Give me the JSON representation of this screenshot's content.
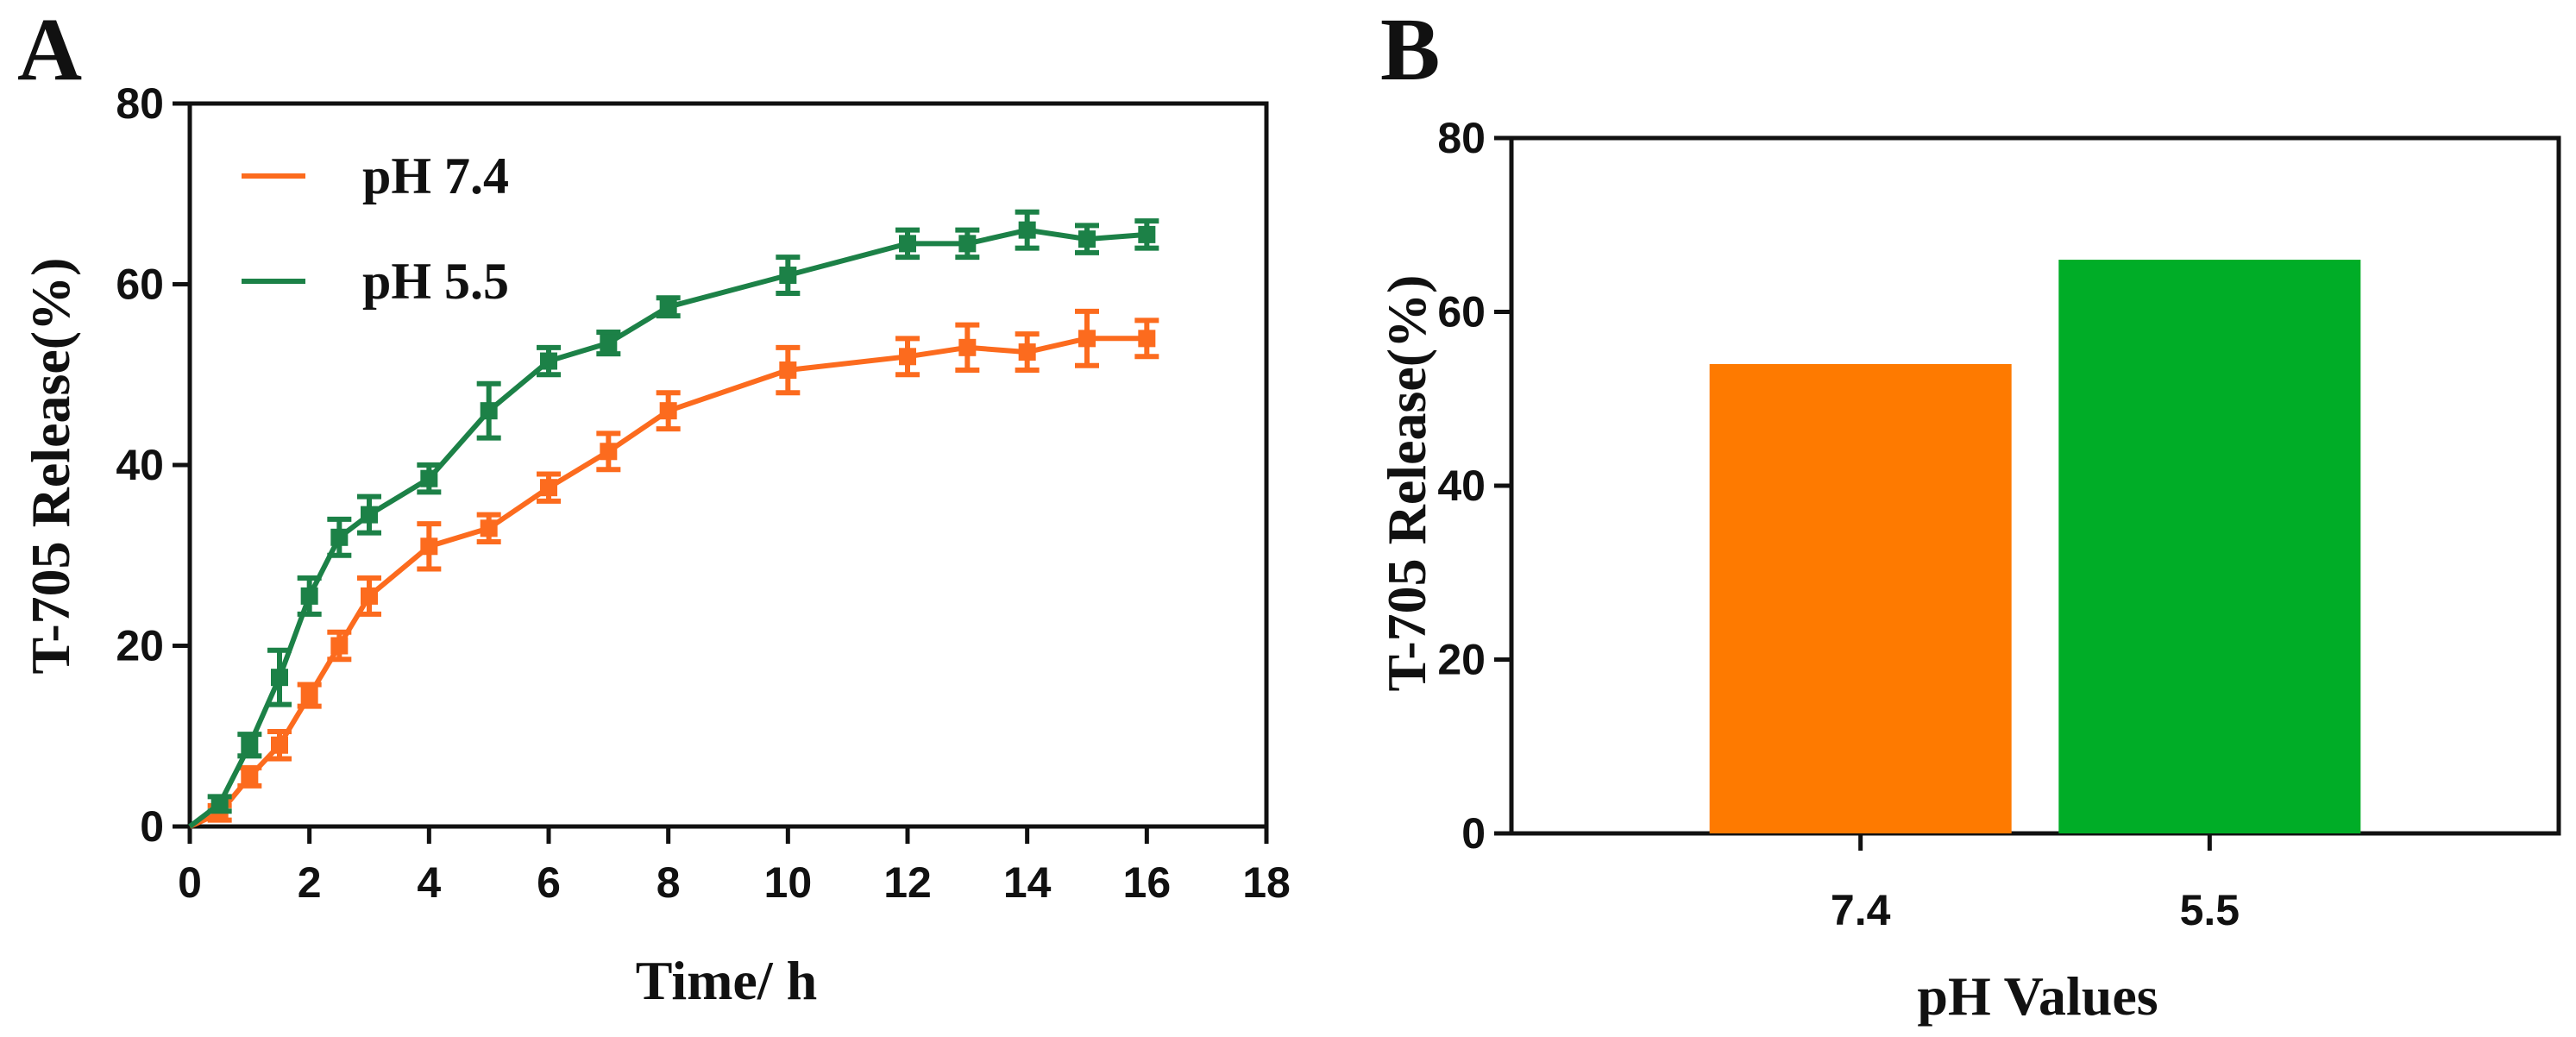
{
  "chart_data": [
    {
      "type": "line",
      "panel_label": "A",
      "xlabel": "Time/ h",
      "ylabel": "T-705 Release(%)",
      "xlim": [
        0,
        18
      ],
      "ylim": [
        0,
        80
      ],
      "xticks": [
        "0",
        "2",
        "4",
        "6",
        "8",
        "10",
        "12",
        "14",
        "16",
        "18"
      ],
      "yticks": [
        "0",
        "20",
        "40",
        "60",
        "80"
      ],
      "legend_position": "top-left",
      "series": [
        {
          "name": "pH 7.4",
          "color": "#fc6b1e",
          "x": [
            0,
            0.5,
            1,
            1.5,
            2,
            2.5,
            3,
            4,
            5,
            6,
            7,
            8,
            10,
            12,
            13,
            14,
            15,
            16
          ],
          "y": [
            0,
            1.5,
            5.5,
            9,
            14.5,
            20,
            25.5,
            31,
            33,
            37.5,
            41.5,
            46,
            50.5,
            52,
            53,
            52.5,
            54,
            54
          ],
          "err": [
            0,
            0.8,
            1.0,
            1.5,
            1.2,
            1.5,
            2.0,
            2.5,
            1.5,
            1.5,
            2.0,
            2.0,
            2.5,
            2.0,
            2.5,
            2.0,
            3.0,
            2.0
          ]
        },
        {
          "name": "pH 5.5",
          "color": "#1c8147",
          "x": [
            0,
            0.5,
            1,
            1.5,
            2,
            2.5,
            3,
            4,
            5,
            6,
            7,
            8,
            10,
            12,
            13,
            14,
            15,
            16
          ],
          "y": [
            0,
            2.5,
            9,
            16.5,
            25.5,
            32,
            34.5,
            38.5,
            46,
            51.5,
            53.5,
            57.5,
            61,
            64.5,
            64.5,
            66,
            65,
            65.5
          ],
          "err": [
            0,
            0.8,
            1.2,
            3.0,
            2.0,
            2.0,
            2.0,
            1.5,
            3.0,
            1.5,
            1.2,
            1.0,
            2.0,
            1.5,
            1.5,
            2.0,
            1.5,
            1.5
          ]
        }
      ]
    },
    {
      "type": "bar",
      "panel_label": "B",
      "xlabel": "pH Values",
      "ylabel": "T-705 Release(%)",
      "ylim": [
        0,
        80
      ],
      "yticks": [
        "0",
        "20",
        "40",
        "60",
        "80"
      ],
      "categories": [
        "7.4",
        "5.5"
      ],
      "values": [
        54,
        66
      ],
      "colors": [
        "#fe7a00",
        "#00ad27"
      ]
    }
  ]
}
